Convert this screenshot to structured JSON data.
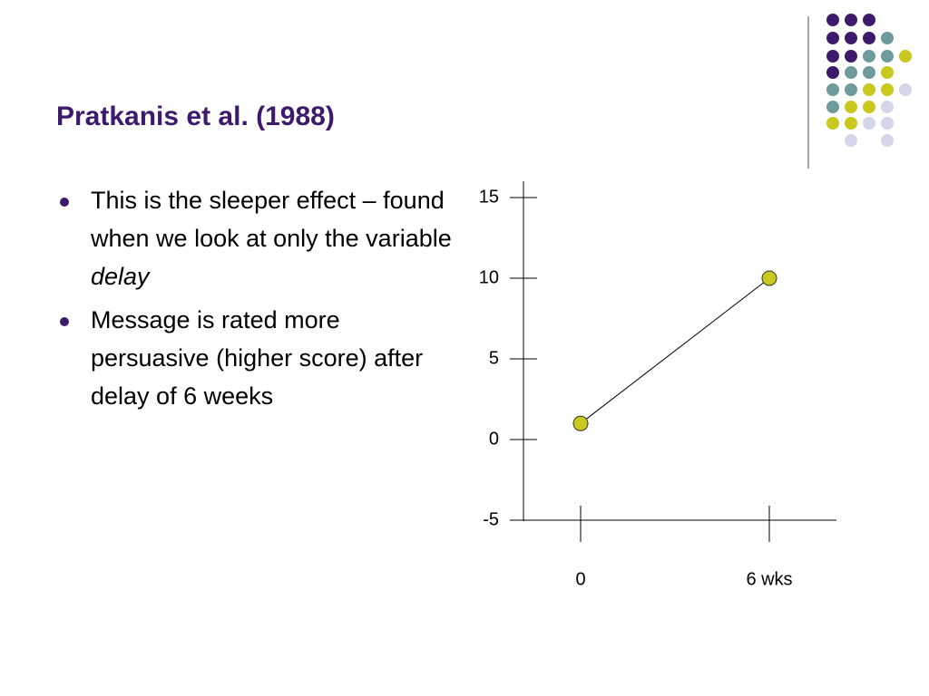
{
  "title": "Pratkanis et al. (1988)",
  "bullets": [
    {
      "text": "This is the sleeper effect – found when we look at only the variable",
      "emphasis": "delay"
    },
    {
      "text": "Message is rated more persuasive (higher score) after delay of 6 weeks"
    }
  ],
  "chart_data": {
    "type": "line",
    "categories": [
      "0",
      "6 wks"
    ],
    "values": [
      1,
      10
    ],
    "color": "#c8c81e",
    "ylim": [
      -5,
      15
    ],
    "yticks": [
      -5,
      0,
      5,
      10,
      15
    ]
  }
}
